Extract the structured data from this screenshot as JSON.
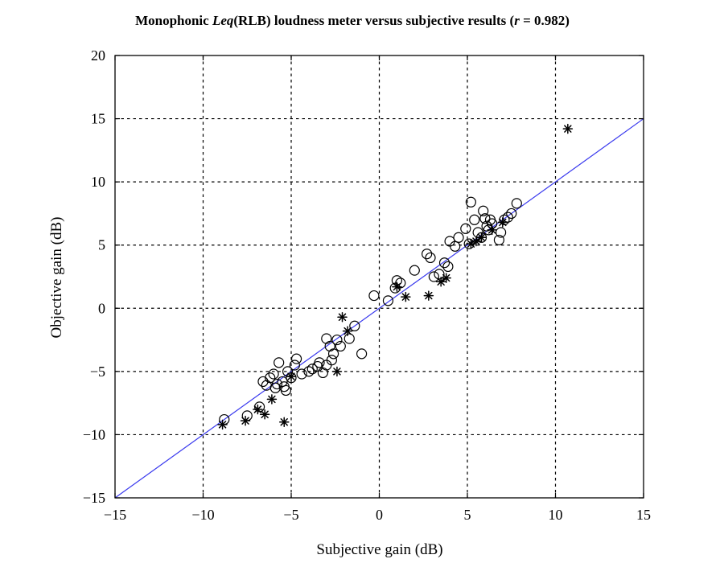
{
  "chart_data": {
    "type": "scatter",
    "title_prefix": "Monophonic ",
    "title_italic": "Leq",
    "title_middle": "(RLB) loudness meter versus subjective results (",
    "title_r": "r",
    "title_suffix": " = 0.982)",
    "xlabel": "Subjective gain (dB)",
    "ylabel": "Objective gain (dB)",
    "xlim": [
      -15,
      15
    ],
    "ylim": [
      -15,
      20
    ],
    "xticks": [
      -15,
      -10,
      -5,
      0,
      5,
      10,
      15
    ],
    "yticks": [
      -15,
      -10,
      -5,
      0,
      5,
      10,
      15,
      20
    ],
    "xtick_labels": [
      "−15",
      "−10",
      "−5",
      "0",
      "5",
      "10",
      "15"
    ],
    "ytick_labels": [
      "−15",
      "−10",
      "−5",
      "0",
      "5",
      "10",
      "15",
      "20"
    ],
    "grid": true,
    "reference_line": {
      "from": [
        -15,
        -15
      ],
      "to": [
        15,
        15
      ],
      "color": "#3a3aee"
    },
    "series": [
      {
        "marker": "circle",
        "points": [
          [
            -8.8,
            -8.8
          ],
          [
            -7.5,
            -8.5
          ],
          [
            -6.8,
            -7.8
          ],
          [
            -6.6,
            -5.8
          ],
          [
            -6.4,
            -6.1
          ],
          [
            -6.2,
            -5.5
          ],
          [
            -6.0,
            -5.2
          ],
          [
            -5.9,
            -6.3
          ],
          [
            -5.8,
            -6.0
          ],
          [
            -5.7,
            -4.3
          ],
          [
            -5.5,
            -5.8
          ],
          [
            -5.4,
            -6.2
          ],
          [
            -5.3,
            -6.5
          ],
          [
            -5.2,
            -5.0
          ],
          [
            -5.0,
            -5.5
          ],
          [
            -4.8,
            -4.5
          ],
          [
            -4.7,
            -4.0
          ],
          [
            -4.4,
            -5.2
          ],
          [
            -4.0,
            -5.0
          ],
          [
            -3.8,
            -4.8
          ],
          [
            -3.5,
            -4.6
          ],
          [
            -3.4,
            -4.3
          ],
          [
            -3.2,
            -5.1
          ],
          [
            -3.0,
            -4.5
          ],
          [
            -3.0,
            -2.4
          ],
          [
            -2.8,
            -3.0
          ],
          [
            -2.7,
            -4.1
          ],
          [
            -2.6,
            -3.6
          ],
          [
            -2.4,
            -2.5
          ],
          [
            -2.2,
            -3.0
          ],
          [
            -1.7,
            -2.4
          ],
          [
            -1.4,
            -1.4
          ],
          [
            -1.0,
            -3.6
          ],
          [
            -0.3,
            1.0
          ],
          [
            0.5,
            0.6
          ],
          [
            0.9,
            1.6
          ],
          [
            1.0,
            2.2
          ],
          [
            1.2,
            2.0
          ],
          [
            2.0,
            3.0
          ],
          [
            2.7,
            4.3
          ],
          [
            2.9,
            4.0
          ],
          [
            3.1,
            2.5
          ],
          [
            3.4,
            2.7
          ],
          [
            3.7,
            3.6
          ],
          [
            3.9,
            3.3
          ],
          [
            4.0,
            5.3
          ],
          [
            4.3,
            4.9
          ],
          [
            4.5,
            5.6
          ],
          [
            4.9,
            6.3
          ],
          [
            5.1,
            5.1
          ],
          [
            5.2,
            8.4
          ],
          [
            5.4,
            7.0
          ],
          [
            5.6,
            6.0
          ],
          [
            5.8,
            5.6
          ],
          [
            5.9,
            7.7
          ],
          [
            6.0,
            7.1
          ],
          [
            6.1,
            6.5
          ],
          [
            6.2,
            6.2
          ],
          [
            6.3,
            7.0
          ],
          [
            6.4,
            6.7
          ],
          [
            6.8,
            5.4
          ],
          [
            6.9,
            6.0
          ],
          [
            7.1,
            7.0
          ],
          [
            7.3,
            7.2
          ],
          [
            7.5,
            7.5
          ],
          [
            7.8,
            8.3
          ]
        ]
      },
      {
        "marker": "star",
        "points": [
          [
            -8.9,
            -9.2
          ],
          [
            -7.6,
            -8.9
          ],
          [
            -6.9,
            -8.0
          ],
          [
            -6.5,
            -8.4
          ],
          [
            -6.1,
            -7.2
          ],
          [
            -5.4,
            -9.0
          ],
          [
            -5.0,
            -5.4
          ],
          [
            -2.4,
            -5.0
          ],
          [
            -2.1,
            -0.7
          ],
          [
            -1.8,
            -1.8
          ],
          [
            1.0,
            1.7
          ],
          [
            1.5,
            0.9
          ],
          [
            2.8,
            1.0
          ],
          [
            3.5,
            2.1
          ],
          [
            3.8,
            2.4
          ],
          [
            5.2,
            5.1
          ],
          [
            5.5,
            5.3
          ],
          [
            5.8,
            5.6
          ],
          [
            6.4,
            6.2
          ],
          [
            7.0,
            6.8
          ],
          [
            10.7,
            14.2
          ]
        ]
      }
    ]
  }
}
